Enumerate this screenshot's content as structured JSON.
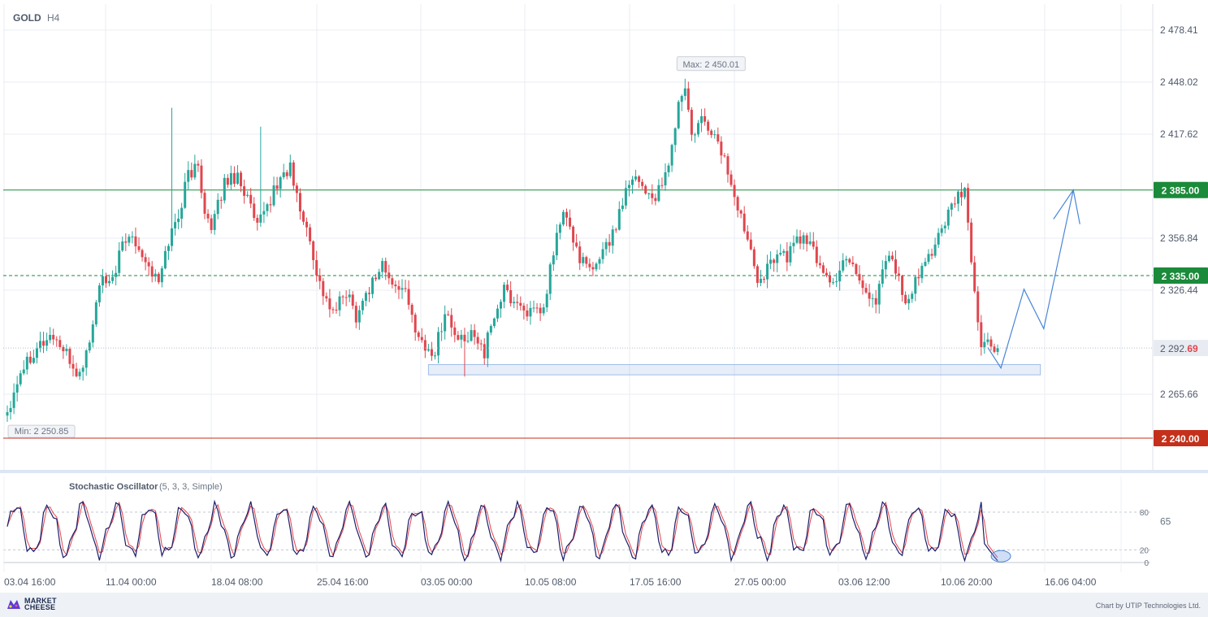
{
  "header": {
    "symbol": "GOLD",
    "timeframe": "H4"
  },
  "oscillator": {
    "name": "Stochastic Oscillator",
    "params": "(5, 3, 3, Simple)"
  },
  "footer": {
    "logo_line1": "MARKET",
    "logo_line2": "CHEESE",
    "credit": "Chart by UTIP Technologies Ltd."
  },
  "colors": {
    "up": "#26a69a",
    "down": "#e0464e",
    "resistance": "#1b8a3a",
    "support": "#c4301b",
    "projection": "#4a86d8",
    "k_line": "#1c1e6b",
    "d_line": "#e0464e"
  },
  "chart_data": [
    {
      "type": "candlestick",
      "symbol": "GOLD",
      "timeframe": "H4",
      "price_ticks": [
        "2 478.41",
        "2 448.02",
        "2 417.62",
        "2 356.84",
        "2 326.44",
        "2 265.66"
      ],
      "price_tick_values": [
        2478.41,
        2448.02,
        2417.62,
        2356.84,
        2326.44,
        2265.66
      ],
      "x_labels": [
        "03.04 16:00",
        "11.04 00:00",
        "18.04 08:00",
        "25.04 16:00",
        "03.05 00:00",
        "10.05 08:00",
        "17.05 16:00",
        "27.05 00:00",
        "03.06 12:00",
        "10.06 20:00",
        "16.06 04:00"
      ],
      "ylim": [
        2226.0,
        2488.0
      ],
      "close_path": [
        [
          0,
          2256
        ],
        [
          4,
          2280
        ],
        [
          9,
          2294
        ],
        [
          14,
          2300
        ],
        [
          18,
          2288
        ],
        [
          22,
          2276
        ],
        [
          26,
          2305
        ],
        [
          28,
          2332
        ],
        [
          31,
          2328
        ],
        [
          35,
          2352
        ],
        [
          38,
          2360
        ],
        [
          42,
          2344
        ],
        [
          46,
          2330
        ],
        [
          49,
          2356
        ],
        [
          52,
          2370
        ],
        [
          55,
          2395
        ],
        [
          58,
          2398
        ],
        [
          60,
          2375
        ],
        [
          62,
          2360
        ],
        [
          66,
          2390
        ],
        [
          70,
          2394
        ],
        [
          73,
          2380
        ],
        [
          76,
          2362
        ],
        [
          80,
          2380
        ],
        [
          83,
          2392
        ],
        [
          86,
          2398
        ],
        [
          88,
          2380
        ],
        [
          92,
          2355
        ],
        [
          95,
          2330
        ],
        [
          99,
          2312
        ],
        [
          103,
          2326
        ],
        [
          106,
          2312
        ],
        [
          110,
          2328
        ],
        [
          114,
          2342
        ],
        [
          117,
          2328
        ],
        [
          120,
          2330
        ],
        [
          123,
          2310
        ],
        [
          127,
          2292
        ],
        [
          130,
          2290
        ],
        [
          133,
          2315
        ],
        [
          136,
          2300
        ],
        [
          139,
          2295
        ],
        [
          142,
          2303
        ],
        [
          145,
          2290
        ],
        [
          148,
          2312
        ],
        [
          151,
          2326
        ],
        [
          154,
          2320
        ],
        [
          157,
          2316
        ],
        [
          160,
          2312
        ],
        [
          163,
          2314
        ],
        [
          166,
          2350
        ],
        [
          169,
          2372
        ],
        [
          172,
          2356
        ],
        [
          175,
          2342
        ],
        [
          178,
          2336
        ],
        [
          181,
          2352
        ],
        [
          184,
          2358
        ],
        [
          187,
          2380
        ],
        [
          190,
          2395
        ],
        [
          193,
          2388
        ],
        [
          196,
          2380
        ],
        [
          199,
          2385
        ],
        [
          202,
          2410
        ],
        [
          204,
          2435
        ],
        [
          206,
          2445
        ],
        [
          208,
          2415
        ],
        [
          211,
          2425
        ],
        [
          214,
          2420
        ],
        [
          217,
          2408
        ],
        [
          220,
          2390
        ],
        [
          222,
          2372
        ],
        [
          225,
          2360
        ],
        [
          228,
          2335
        ],
        [
          231,
          2338
        ],
        [
          234,
          2350
        ],
        [
          237,
          2345
        ],
        [
          240,
          2358
        ],
        [
          243,
          2355
        ],
        [
          246,
          2345
        ],
        [
          249,
          2335
        ],
        [
          252,
          2330
        ],
        [
          255,
          2348
        ],
        [
          258,
          2338
        ],
        [
          261,
          2325
        ],
        [
          264,
          2320
        ],
        [
          267,
          2348
        ],
        [
          270,
          2340
        ],
        [
          273,
          2315
        ],
        [
          276,
          2330
        ],
        [
          279,
          2342
        ],
        [
          282,
          2355
        ],
        [
          285,
          2365
        ],
        [
          288,
          2378
        ],
        [
          291,
          2385
        ],
        [
          292,
          2362
        ],
        [
          293,
          2345
        ],
        [
          294,
          2325
        ],
        [
          295,
          2308
        ],
        [
          296,
          2296
        ],
        [
          298,
          2294
        ],
        [
          300,
          2293
        ],
        [
          301,
          2292.69
        ]
      ],
      "period_high": {
        "label": "Max: 2 450.01",
        "value": 2450.01
      },
      "period_low": {
        "label": "Min: 2 250.85",
        "value": 2250.85
      },
      "levels": [
        {
          "name": "resistance",
          "value": 2385.0,
          "label": "2 385.00",
          "style": "solid",
          "color": "#1b8a3a"
        },
        {
          "name": "pivot",
          "value": 2335.0,
          "label": "2 335.00",
          "style": "dashed",
          "color": "#1b8a3a"
        },
        {
          "name": "support",
          "value": 2240.0,
          "label": "2 240.00",
          "style": "solid",
          "color": "#c4301b"
        }
      ],
      "current_price": {
        "value": 2292.69,
        "label_main": "2 292.",
        "label_tail": "69"
      },
      "support_zone": {
        "bar_start": 128,
        "bar_end": 314,
        "price_low": 2277,
        "price_high": 2283
      },
      "projection": [
        {
          "bar": 298,
          "price": 2293
        },
        {
          "bar": 302,
          "price": 2281
        },
        {
          "bar": 309,
          "price": 2327
        },
        {
          "bar": 315,
          "price": 2304
        },
        {
          "bar": 324,
          "price": 2385
        },
        {
          "bar": 318,
          "price": 2368
        },
        {
          "bar": 324,
          "price": 2385
        },
        {
          "bar": 326,
          "price": 2365
        }
      ]
    },
    {
      "type": "line",
      "name": "Stochastic Oscillator",
      "params": "(5, 3, 3, Simple)",
      "y_ticks": [
        "80",
        "65",
        "20",
        "0"
      ],
      "y_tick_values": [
        80,
        65,
        20,
        0
      ],
      "ylim": [
        0,
        100
      ],
      "highlight_last": true
    }
  ]
}
